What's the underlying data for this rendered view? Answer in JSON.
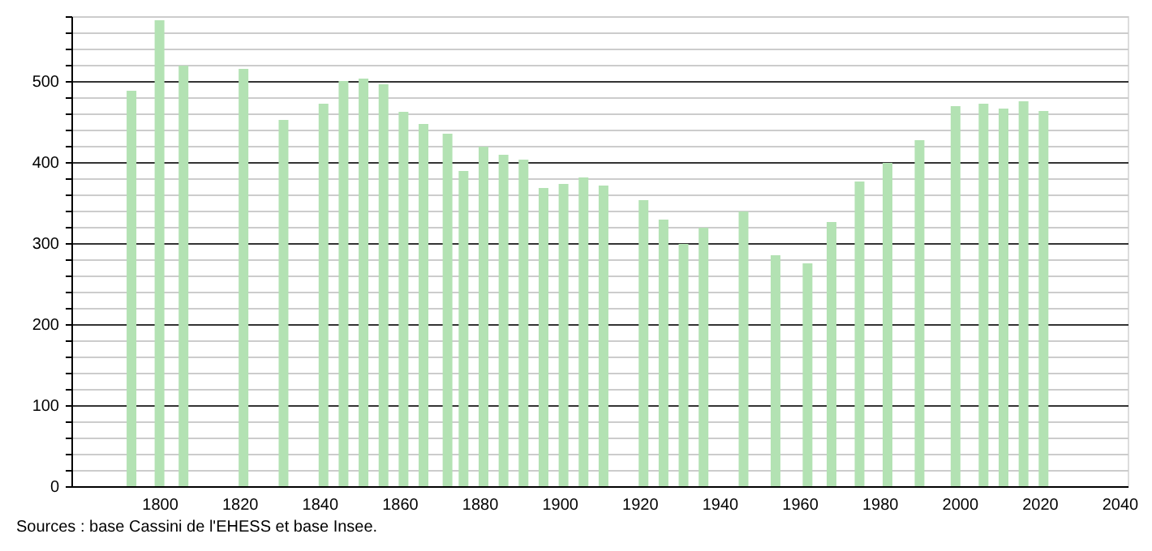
{
  "chart_data": {
    "type": "bar",
    "color": "#b3e2b3",
    "x": [
      1793,
      1800,
      1806,
      1821,
      1831,
      1841,
      1846,
      1851,
      1856,
      1861,
      1866,
      1872,
      1876,
      1881,
      1886,
      1891,
      1896,
      1901,
      1906,
      1911,
      1921,
      1926,
      1931,
      1936,
      1946,
      1954,
      1962,
      1968,
      1975,
      1982,
      1990,
      1999,
      2006,
      2011,
      2016,
      2021
    ],
    "values": [
      488,
      575,
      519,
      515,
      452,
      472,
      500,
      503,
      496,
      462,
      447,
      435,
      389,
      419,
      409,
      403,
      368,
      373,
      381,
      371,
      353,
      329,
      299,
      319,
      339,
      285,
      275,
      326,
      376,
      399,
      427,
      469,
      472,
      466,
      475,
      463
    ],
    "xlim": [
      1780,
      2040
    ],
    "xticks": [
      1800,
      1820,
      1840,
      1860,
      1880,
      1900,
      1920,
      1940,
      1960,
      1980,
      2000,
      2020,
      2040
    ],
    "ylim": [
      0,
      580
    ],
    "yticks": [
      0,
      {
        "value": 20,
        "label": null
      },
      {
        "value": 40,
        "label": null
      },
      {
        "value": 60,
        "label": null
      },
      {
        "value": 80,
        "label": null
      },
      100,
      {
        "value": 120,
        "label": null
      },
      {
        "value": 140,
        "label": null
      },
      {
        "value": 160,
        "label": null
      },
      {
        "value": 180,
        "label": null
      },
      200,
      {
        "value": 220,
        "label": null
      },
      {
        "value": 240,
        "label": null
      },
      {
        "value": 260,
        "label": null
      },
      {
        "value": 280,
        "label": null
      },
      300,
      {
        "value": 320,
        "label": null
      },
      {
        "value": 340,
        "label": null
      },
      {
        "value": 360,
        "label": null
      },
      {
        "value": 380,
        "label": null
      },
      400,
      {
        "value": 420,
        "label": null
      },
      {
        "value": 440,
        "label": null
      },
      {
        "value": 460,
        "label": null
      },
      {
        "value": 480,
        "label": null
      },
      500,
      {
        "value": 520,
        "label": null
      },
      {
        "value": 540,
        "label": null
      },
      {
        "value": 560,
        "label": null
      },
      {
        "value": 580,
        "label": null
      }
    ],
    "grid": "y",
    "annotations": [
      "Sources : base Cassini de l'EHESS et base Insee."
    ]
  }
}
